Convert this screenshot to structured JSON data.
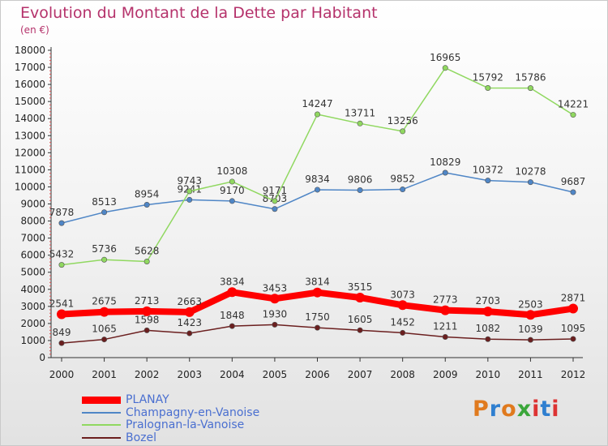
{
  "header": {
    "title": "Evolution du Montant de la Dette par Habitant",
    "unit": "(en €)"
  },
  "logo": {
    "text": "Proxiti",
    "colors": [
      "#e07a1e",
      "#2f7fd0",
      "#e07a1e",
      "#3aa63a",
      "#d33",
      "#2f7fd0",
      "#d33"
    ]
  },
  "chart_data": {
    "type": "line",
    "title": "Evolution du Montant de la Dette par Habitant",
    "ylabel": "(en €)",
    "xlabel": "",
    "categories": [
      "2000",
      "2001",
      "2002",
      "2003",
      "2004",
      "2005",
      "2006",
      "2007",
      "2008",
      "2009",
      "2010",
      "2011",
      "2012"
    ],
    "ylim": [
      0,
      18000
    ],
    "yticks": [
      0,
      1000,
      2000,
      3000,
      4000,
      5000,
      6000,
      7000,
      8000,
      9000,
      10000,
      11000,
      12000,
      13000,
      14000,
      15000,
      16000,
      17000,
      18000
    ],
    "grid": false,
    "legend_position": "bottom-left",
    "series": [
      {
        "name": "PLANAY",
        "color": "#ff0000",
        "thick": true,
        "values": [
          2541,
          2675,
          2713,
          2663,
          3834,
          3453,
          3814,
          3515,
          3073,
          2773,
          2703,
          2503,
          2871
        ]
      },
      {
        "name": "Champagny-en-Vanoise",
        "color": "#4f86c6",
        "thick": false,
        "values": [
          7878,
          8513,
          8954,
          9241,
          9170,
          8703,
          9834,
          9806,
          9852,
          10829,
          10372,
          10278,
          9687
        ]
      },
      {
        "name": "Pralognan-la-Vanoise",
        "color": "#90d860",
        "thick": false,
        "values": [
          5432,
          5736,
          5628,
          9743,
          10308,
          9171,
          14247,
          13711,
          13256,
          16965,
          15792,
          15786,
          14221
        ]
      },
      {
        "name": "Bozel",
        "color": "#6b1f1f",
        "thick": false,
        "values": [
          849,
          1065,
          1598,
          1423,
          1848,
          1930,
          1750,
          1605,
          1452,
          1211,
          1082,
          1039,
          1095
        ]
      }
    ]
  }
}
